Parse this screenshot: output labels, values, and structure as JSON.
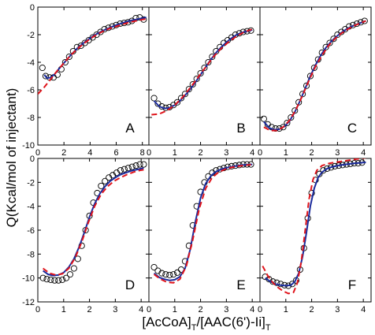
{
  "chart_data": {
    "type": "scatter",
    "ylabel": "Q(Kcal/mol of injectant)",
    "xlabel": {
      "part1": "[AcCoA]",
      "sub1": "T",
      "part2": "/[AAC(6')-Ii]",
      "sub2": "T"
    },
    "series_styles": {
      "points": {
        "marker": "open-circle",
        "color": "#000000"
      },
      "fit_solid": {
        "line": "solid",
        "color": "#1a2a9c"
      },
      "fit_dashed": {
        "line": "dashed",
        "color": "#e0141b"
      }
    },
    "panels": [
      {
        "label": "A",
        "xlim": [
          0,
          8.5
        ],
        "ylim": [
          -10,
          0
        ],
        "xticks": [
          0,
          2,
          4,
          6,
          8
        ],
        "yticks": [
          0,
          -2,
          -4,
          -6,
          -8,
          -10
        ],
        "points": {
          "x": [
            0.35,
            0.6,
            0.9,
            1.2,
            1.5,
            1.8,
            2.1,
            2.4,
            2.7,
            3.0,
            3.3,
            3.6,
            3.9,
            4.2,
            4.5,
            4.8,
            5.1,
            5.4,
            5.7,
            6.0,
            6.3,
            6.6,
            6.9,
            7.2,
            7.5,
            7.8,
            8.1
          ],
          "y": [
            -4.4,
            -5.0,
            -5.1,
            -5.1,
            -4.9,
            -4.5,
            -4.0,
            -3.6,
            -3.2,
            -2.9,
            -2.8,
            -2.6,
            -2.4,
            -2.2,
            -2.0,
            -1.8,
            -1.6,
            -1.5,
            -1.4,
            -1.3,
            -1.2,
            -1.15,
            -1.1,
            -1.0,
            -0.8,
            -0.75,
            -0.9
          ]
        },
        "fit_solid": {
          "x": [
            0.5,
            0.7,
            1.0,
            1.3,
            1.6,
            2.0,
            2.5,
            3.0,
            3.5,
            4.0,
            4.5,
            5.0,
            5.5,
            6.0,
            6.5,
            7.0,
            7.5,
            8.0,
            8.3
          ],
          "y": [
            -4.9,
            -5.15,
            -5.1,
            -4.85,
            -4.5,
            -4.05,
            -3.5,
            -3.0,
            -2.6,
            -2.25,
            -1.95,
            -1.7,
            -1.5,
            -1.3,
            -1.15,
            -1.0,
            -0.9,
            -0.8,
            -0.75
          ]
        },
        "fit_dashed": {
          "x": [
            0.0,
            0.5,
            1.0,
            1.5,
            2.0,
            2.5,
            3.0,
            3.5,
            4.0,
            4.5,
            5.0,
            5.5,
            6.0,
            6.5,
            7.0,
            7.5,
            8.0,
            8.4
          ],
          "y": [
            -6.3,
            -5.8,
            -5.2,
            -4.6,
            -4.05,
            -3.5,
            -3.05,
            -2.65,
            -2.3,
            -2.0,
            -1.75,
            -1.55,
            -1.4,
            -1.25,
            -1.1,
            -1.0,
            -0.9,
            -0.85
          ]
        }
      },
      {
        "label": "B",
        "xlim": [
          0,
          4.3
        ],
        "ylim": [
          -10,
          0
        ],
        "xticks": [
          0,
          1,
          2,
          3,
          4
        ],
        "yticks": [],
        "points": {
          "x": [
            0.2,
            0.35,
            0.5,
            0.65,
            0.8,
            0.95,
            1.1,
            1.25,
            1.4,
            1.55,
            1.7,
            1.85,
            2.0,
            2.15,
            2.3,
            2.45,
            2.6,
            2.75,
            2.9,
            3.05,
            3.2,
            3.35,
            3.5,
            3.65,
            3.8,
            3.95
          ],
          "y": [
            -6.6,
            -7.0,
            -7.2,
            -7.3,
            -7.25,
            -7.1,
            -6.9,
            -6.6,
            -6.3,
            -5.95,
            -5.6,
            -5.2,
            -4.8,
            -4.4,
            -4.0,
            -3.6,
            -3.2,
            -2.9,
            -2.6,
            -2.4,
            -2.2,
            -2.0,
            -1.9,
            -1.8,
            -1.75,
            -1.7
          ]
        },
        "fit_solid": {
          "x": [
            0.2,
            0.4,
            0.6,
            0.8,
            1.0,
            1.2,
            1.4,
            1.6,
            1.8,
            2.0,
            2.2,
            2.4,
            2.6,
            2.8,
            3.0,
            3.2,
            3.4,
            3.6,
            3.8,
            4.0
          ],
          "y": [
            -6.8,
            -7.2,
            -7.35,
            -7.3,
            -7.1,
            -6.8,
            -6.4,
            -5.95,
            -5.45,
            -4.9,
            -4.35,
            -3.8,
            -3.3,
            -2.9,
            -2.55,
            -2.25,
            -2.0,
            -1.85,
            -1.75,
            -1.65
          ]
        },
        "fit_dashed": {
          "x": [
            0.1,
            0.4,
            0.7,
            1.0,
            1.3,
            1.6,
            1.9,
            2.2,
            2.5,
            2.8,
            3.1,
            3.4,
            3.7,
            4.0
          ],
          "y": [
            -7.8,
            -7.75,
            -7.5,
            -7.1,
            -6.55,
            -5.85,
            -5.1,
            -4.35,
            -3.6,
            -3.0,
            -2.5,
            -2.1,
            -1.8,
            -1.6
          ]
        }
      },
      {
        "label": "C",
        "xlim": [
          0,
          4.3
        ],
        "ylim": [
          -10,
          0
        ],
        "xticks": [
          0,
          1,
          2,
          3,
          4
        ],
        "yticks": [],
        "points": {
          "x": [
            0.15,
            0.3,
            0.45,
            0.6,
            0.75,
            0.9,
            1.05,
            1.2,
            1.35,
            1.5,
            1.65,
            1.8,
            1.95,
            2.1,
            2.25,
            2.4,
            2.55,
            2.7,
            2.85,
            3.0,
            3.15,
            3.3,
            3.45,
            3.6,
            3.75,
            3.9,
            4.05
          ],
          "y": [
            -8.1,
            -8.5,
            -8.7,
            -8.8,
            -8.8,
            -8.7,
            -8.4,
            -8.0,
            -7.5,
            -6.9,
            -6.3,
            -5.7,
            -5.0,
            -4.4,
            -3.8,
            -3.3,
            -2.9,
            -2.6,
            -2.3,
            -2.0,
            -1.8,
            -1.6,
            -1.4,
            -1.3,
            -1.2,
            -1.1,
            -1.0
          ]
        },
        "fit_solid": {
          "x": [
            0.15,
            0.35,
            0.55,
            0.75,
            0.95,
            1.15,
            1.35,
            1.55,
            1.75,
            1.95,
            2.15,
            2.35,
            2.55,
            2.75,
            2.95,
            3.15,
            3.35,
            3.55,
            3.75,
            3.95,
            4.1
          ],
          "y": [
            -8.3,
            -8.75,
            -8.9,
            -8.85,
            -8.65,
            -8.25,
            -7.6,
            -6.8,
            -5.9,
            -5.0,
            -4.2,
            -3.5,
            -2.95,
            -2.5,
            -2.15,
            -1.85,
            -1.6,
            -1.4,
            -1.25,
            -1.1,
            -1.0
          ]
        },
        "fit_dashed": {
          "x": [
            0.15,
            0.4,
            0.65,
            0.9,
            1.15,
            1.4,
            1.65,
            1.9,
            2.15,
            2.4,
            2.65,
            2.9,
            3.15,
            3.4,
            3.65,
            3.9,
            4.1
          ],
          "y": [
            -8.7,
            -8.95,
            -8.95,
            -8.7,
            -8.2,
            -7.4,
            -6.4,
            -5.3,
            -4.3,
            -3.5,
            -2.8,
            -2.3,
            -1.9,
            -1.6,
            -1.35,
            -1.15,
            -1.0
          ]
        }
      },
      {
        "label": "D",
        "xlim": [
          0,
          4.3
        ],
        "ylim": [
          -12,
          0
        ],
        "xticks": [
          0,
          1,
          2,
          3,
          4
        ],
        "yticks": [
          0,
          -2,
          -4,
          -6,
          -8,
          -10,
          -12
        ],
        "points": {
          "x": [
            0.2,
            0.35,
            0.5,
            0.65,
            0.8,
            0.95,
            1.1,
            1.25,
            1.4,
            1.55,
            1.7,
            1.85,
            2.0,
            2.15,
            2.3,
            2.45,
            2.6,
            2.75,
            2.9,
            3.05,
            3.2,
            3.35,
            3.5,
            3.65,
            3.8,
            3.95,
            4.1
          ],
          "y": [
            -10.0,
            -10.1,
            -10.15,
            -10.2,
            -10.2,
            -10.15,
            -10.0,
            -9.7,
            -9.2,
            -8.4,
            -7.3,
            -6.0,
            -4.8,
            -3.7,
            -2.9,
            -2.3,
            -1.9,
            -1.6,
            -1.4,
            -1.2,
            -1.0,
            -0.9,
            -0.8,
            -0.7,
            -0.6,
            -0.5,
            -0.5
          ]
        },
        "fit_solid": {
          "x": [
            0.2,
            0.4,
            0.6,
            0.8,
            1.0,
            1.2,
            1.4,
            1.6,
            1.8,
            2.0,
            2.2,
            2.4,
            2.6,
            2.8,
            3.0,
            3.2,
            3.4,
            3.6,
            3.8,
            4.0,
            4.1
          ],
          "y": [
            -9.4,
            -9.7,
            -9.8,
            -9.75,
            -9.55,
            -9.1,
            -8.4,
            -7.4,
            -6.2,
            -4.9,
            -3.8,
            -2.95,
            -2.35,
            -1.9,
            -1.6,
            -1.35,
            -1.2,
            -1.05,
            -0.95,
            -0.85,
            -0.8
          ]
        },
        "fit_dashed": {
          "x": [
            0.2,
            0.45,
            0.7,
            0.95,
            1.2,
            1.45,
            1.7,
            1.95,
            2.2,
            2.45,
            2.7,
            2.95,
            3.2,
            3.45,
            3.7,
            3.95,
            4.1
          ],
          "y": [
            -9.2,
            -9.6,
            -9.75,
            -9.65,
            -9.2,
            -8.3,
            -7.0,
            -5.4,
            -4.0,
            -3.0,
            -2.35,
            -1.9,
            -1.6,
            -1.35,
            -1.15,
            -1.0,
            -0.95
          ]
        }
      },
      {
        "label": "E",
        "xlim": [
          0,
          4.3
        ],
        "ylim": [
          -12,
          0
        ],
        "xticks": [
          0,
          1,
          2,
          3,
          4
        ],
        "yticks": [],
        "points": {
          "x": [
            0.2,
            0.35,
            0.5,
            0.65,
            0.8,
            0.95,
            1.1,
            1.25,
            1.4,
            1.55,
            1.7,
            1.85,
            2.0,
            2.15,
            2.3,
            2.45,
            2.6,
            2.75,
            2.9,
            3.05,
            3.2,
            3.35,
            3.5,
            3.65,
            3.8,
            3.95
          ],
          "y": [
            -9.1,
            -9.4,
            -9.6,
            -9.7,
            -9.75,
            -9.7,
            -9.55,
            -9.3,
            -8.6,
            -7.3,
            -5.6,
            -4.0,
            -2.8,
            -2.0,
            -1.5,
            -1.2,
            -1.0,
            -0.9,
            -0.8,
            -0.7,
            -0.65,
            -0.6,
            -0.55,
            -0.5,
            -0.5,
            -0.5
          ]
        },
        "fit_solid": {
          "x": [
            0.2,
            0.4,
            0.6,
            0.8,
            1.0,
            1.2,
            1.4,
            1.6,
            1.8,
            2.0,
            2.2,
            2.4,
            2.6,
            2.8,
            3.0,
            3.2,
            3.4,
            3.6,
            3.8,
            4.0
          ],
          "y": [
            -9.6,
            -9.95,
            -10.1,
            -10.2,
            -10.15,
            -9.9,
            -9.2,
            -7.6,
            -5.3,
            -3.3,
            -2.1,
            -1.45,
            -1.1,
            -0.9,
            -0.78,
            -0.7,
            -0.62,
            -0.56,
            -0.52,
            -0.5
          ]
        },
        "fit_dashed": {
          "x": [
            0.2,
            0.45,
            0.7,
            0.95,
            1.2,
            1.45,
            1.7,
            1.95,
            2.2,
            2.45,
            2.7,
            2.95,
            3.2,
            3.45,
            3.7,
            3.95
          ],
          "y": [
            -9.7,
            -10.1,
            -10.35,
            -10.4,
            -10.1,
            -9.0,
            -6.8,
            -4.2,
            -2.5,
            -1.6,
            -1.15,
            -0.9,
            -0.75,
            -0.65,
            -0.58,
            -0.52
          ]
        }
      },
      {
        "label": "F",
        "xlim": [
          0,
          4.3
        ],
        "ylim": [
          -12,
          0
        ],
        "xticks": [
          0,
          1,
          2,
          3,
          4
        ],
        "yticks": [],
        "points": {
          "x": [
            0.2,
            0.35,
            0.5,
            0.65,
            0.8,
            0.95,
            1.1,
            1.25,
            1.4,
            1.55,
            1.7,
            1.85,
            2.0,
            2.15,
            2.3,
            2.45,
            2.6,
            2.75,
            2.9,
            3.05,
            3.2,
            3.35,
            3.5,
            3.65,
            3.8,
            3.95
          ],
          "y": [
            -9.9,
            -10.1,
            -10.3,
            -10.4,
            -10.5,
            -10.6,
            -10.65,
            -10.5,
            -10.2,
            -9.3,
            -7.5,
            -5.0,
            -2.9,
            -1.8,
            -1.3,
            -1.0,
            -0.85,
            -0.75,
            -0.65,
            -0.6,
            -0.55,
            -0.5,
            -0.45,
            -0.4,
            -0.4,
            -0.35
          ]
        },
        "fit_solid": {
          "x": [
            0.2,
            0.4,
            0.6,
            0.8,
            1.0,
            1.2,
            1.35,
            1.5,
            1.65,
            1.8,
            1.95,
            2.1,
            2.25,
            2.4,
            2.6,
            2.8,
            3.0,
            3.3,
            3.6,
            3.9,
            4.1
          ],
          "y": [
            -10.0,
            -10.3,
            -10.5,
            -10.6,
            -10.65,
            -10.6,
            -10.3,
            -9.6,
            -8.2,
            -6.2,
            -4.0,
            -2.5,
            -1.6,
            -1.15,
            -0.85,
            -0.7,
            -0.6,
            -0.5,
            -0.42,
            -0.36,
            -0.32
          ]
        },
        "fit_dashed": {
          "x": [
            0.1,
            0.3,
            0.5,
            0.7,
            0.9,
            1.1,
            1.3,
            1.45,
            1.6,
            1.75,
            1.9,
            2.05,
            2.2,
            2.4,
            2.7,
            3.0,
            3.3,
            3.6,
            3.9,
            4.1
          ],
          "y": [
            -9.0,
            -9.8,
            -10.4,
            -10.8,
            -11.1,
            -11.3,
            -11.2,
            -10.4,
            -8.6,
            -6.0,
            -3.4,
            -1.8,
            -1.0,
            -0.6,
            -0.4,
            -0.3,
            -0.2,
            -0.1,
            0.0,
            0.05
          ]
        }
      }
    ]
  }
}
